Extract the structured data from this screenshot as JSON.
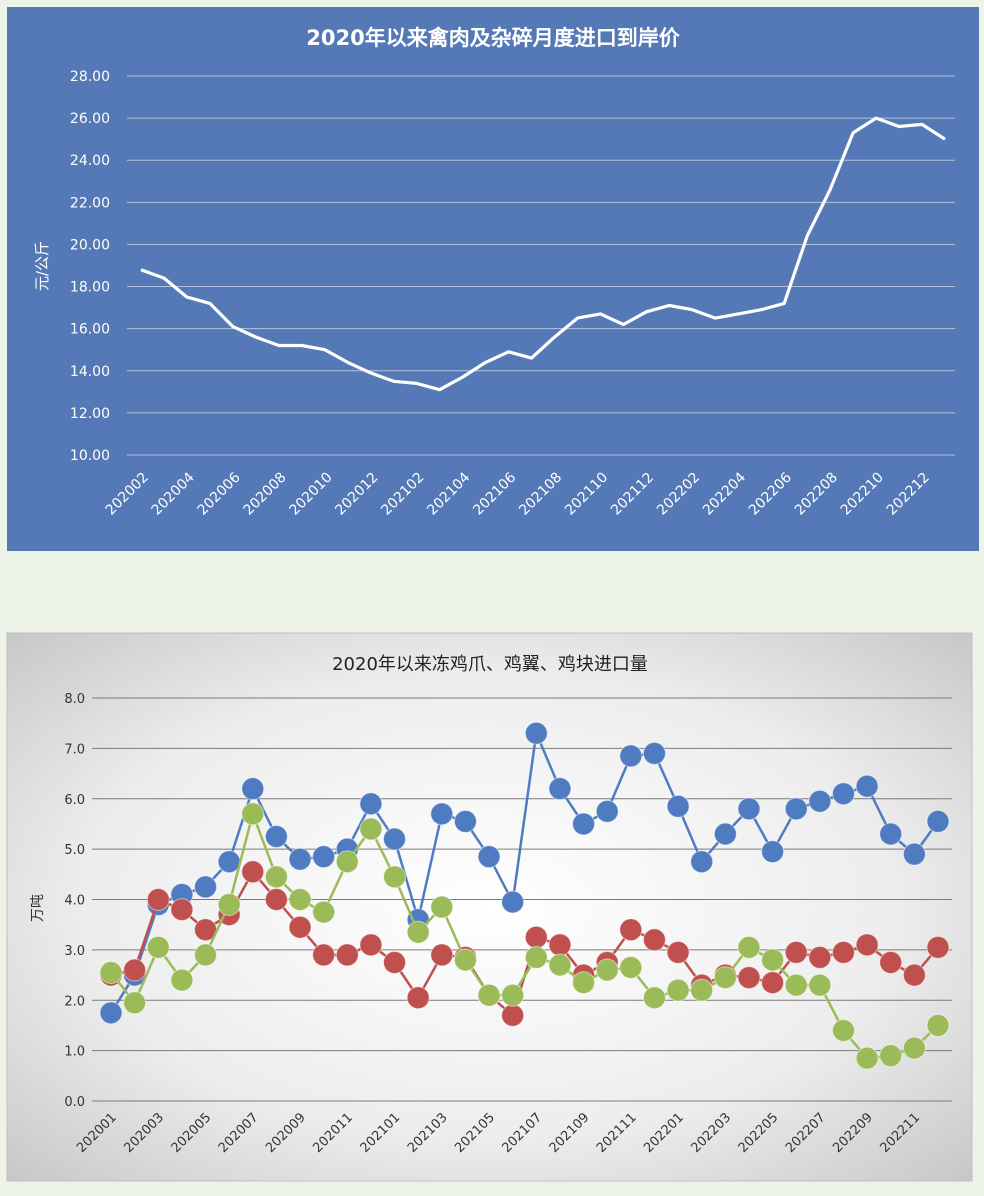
{
  "chart_data": [
    {
      "type": "line",
      "title": "2020年以来禽肉及杂碎月度进口到岸价",
      "ylabel": "元/公斤",
      "xlabel": "",
      "ylim": [
        10,
        28
      ],
      "yticks": [
        "10.00",
        "12.00",
        "14.00",
        "16.00",
        "18.00",
        "20.00",
        "22.00",
        "24.00",
        "26.00",
        "28.00"
      ],
      "grid": true,
      "x": [
        "202002",
        "202003",
        "202004",
        "202005",
        "202006",
        "202007",
        "202008",
        "202009",
        "202010",
        "202011",
        "202012",
        "202101",
        "202102",
        "202103",
        "202104",
        "202105",
        "202106",
        "202107",
        "202108",
        "202109",
        "202110",
        "202111",
        "202112",
        "202201",
        "202202",
        "202203",
        "202204",
        "202205",
        "202206",
        "202207",
        "202208",
        "202209",
        "202210",
        "202211",
        "202212",
        "202301"
      ],
      "xtick_labels": [
        "202002",
        "202004",
        "202006",
        "202008",
        "202010",
        "202012",
        "202102",
        "202104",
        "202106",
        "202108",
        "202110",
        "202112",
        "202202",
        "202204",
        "202206",
        "202208",
        "202210",
        "202212"
      ],
      "series": [
        {
          "name": "",
          "color": "#ffffff",
          "values": [
            18.8,
            18.4,
            17.5,
            17.2,
            16.1,
            15.6,
            15.2,
            15.2,
            15.0,
            14.4,
            13.9,
            13.5,
            13.4,
            13.1,
            13.7,
            14.4,
            14.9,
            14.6,
            15.6,
            16.5,
            16.7,
            16.2,
            16.8,
            17.1,
            16.9,
            16.5,
            16.7,
            16.9,
            17.2,
            20.4,
            22.6,
            25.3,
            26.0,
            25.6,
            25.7,
            25.0
          ]
        }
      ]
    },
    {
      "type": "line",
      "title": "2020年以来冻鸡爪、鸡翼、鸡块进口量",
      "ylabel": "万吨",
      "xlabel": "",
      "ylim": [
        0,
        8
      ],
      "yticks": [
        "0.0",
        "1.0",
        "2.0",
        "3.0",
        "4.0",
        "5.0",
        "6.0",
        "7.0",
        "8.0"
      ],
      "grid": true,
      "x": [
        "202001",
        "202002",
        "202003",
        "202004",
        "202005",
        "202006",
        "202007",
        "202008",
        "202009",
        "202010",
        "202011",
        "202012",
        "202101",
        "202102",
        "202103",
        "202104",
        "202105",
        "202106",
        "202107",
        "202108",
        "202109",
        "202110",
        "202111",
        "202112",
        "202201",
        "202202",
        "202203",
        "202204",
        "202205",
        "202206",
        "202207",
        "202208",
        "202209",
        "202210",
        "202211",
        "202212"
      ],
      "xtick_labels": [
        "202001",
        "202003",
        "202005",
        "202007",
        "202009",
        "202011",
        "202101",
        "202103",
        "202105",
        "202107",
        "202109",
        "202111",
        "202201",
        "202203",
        "202205",
        "202207",
        "202209",
        "202211"
      ],
      "series": [
        {
          "name": "",
          "color": "#4f7cc0",
          "values": [
            1.75,
            2.5,
            3.9,
            4.1,
            4.25,
            4.75,
            6.2,
            5.25,
            4.8,
            4.85,
            5.0,
            5.9,
            5.2,
            3.6,
            5.7,
            5.55,
            4.85,
            3.95,
            7.3,
            6.2,
            5.5,
            5.75,
            6.85,
            6.9,
            5.85,
            4.75,
            5.3,
            5.8,
            4.95,
            5.8,
            5.95,
            6.1,
            6.25,
            5.3,
            4.9,
            5.55
          ]
        },
        {
          "name": "",
          "color": "#c0504d",
          "values": [
            2.5,
            2.6,
            4.0,
            3.8,
            3.4,
            3.7,
            4.55,
            4.0,
            3.45,
            2.9,
            2.9,
            3.1,
            2.75,
            2.05,
            2.9,
            2.85,
            2.1,
            1.7,
            3.25,
            3.1,
            2.5,
            2.75,
            3.4,
            3.2,
            2.95,
            2.3,
            2.5,
            2.45,
            2.35,
            2.95,
            2.85,
            2.95,
            3.1,
            2.75,
            2.5,
            3.05
          ]
        },
        {
          "name": "",
          "color": "#9bbb59",
          "values": [
            2.55,
            1.95,
            3.05,
            2.4,
            2.9,
            3.9,
            5.7,
            4.45,
            4.0,
            3.75,
            4.75,
            5.4,
            4.45,
            3.35,
            3.85,
            2.8,
            2.1,
            2.1,
            2.85,
            2.7,
            2.35,
            2.6,
            2.65,
            2.05,
            2.2,
            2.2,
            2.45,
            3.05,
            2.8,
            2.3,
            2.3,
            1.4,
            0.85,
            0.9,
            1.05,
            1.5
          ]
        }
      ]
    }
  ]
}
